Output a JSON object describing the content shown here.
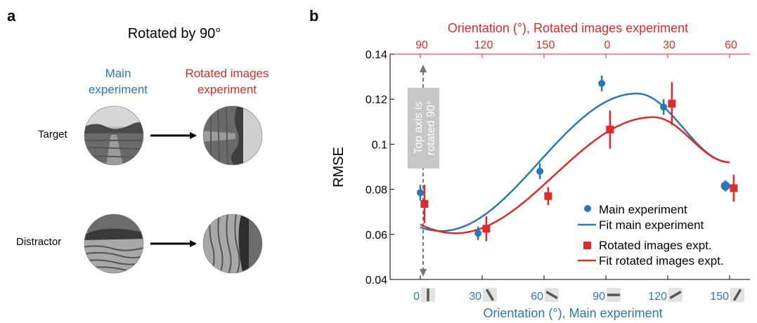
{
  "panel_a": {
    "letter": "a",
    "title": "Rotated by 90°",
    "col_main": [
      "Main",
      "experiment"
    ],
    "col_rot": [
      "Rotated images",
      "experiment"
    ],
    "row_target": "Target",
    "row_distractor": "Distractor"
  },
  "panel_b": {
    "letter": "b",
    "annotation": [
      "Top axis is",
      "rotated 90°"
    ]
  },
  "colors": {
    "main": "#2a77b8",
    "rotated": "#dd2a2a",
    "annotation": "#777777"
  },
  "chart_data": {
    "type": "scatter",
    "ylabel": "RMSE",
    "xlabel_bottom": "Orientation (°), Main experiment",
    "xlabel_top": "Orientation (°), Rotated images experiment",
    "ylim": [
      0.04,
      0.14
    ],
    "yticks": [
      0.04,
      0.06,
      0.08,
      0.1,
      0.12,
      0.14
    ],
    "ytick_labels": [
      "0.04",
      "0.06",
      "0.08",
      "0.1",
      "0.12",
      "0.14"
    ],
    "xlim": [
      -3,
      153
    ],
    "xticks_bottom": [
      0,
      30,
      60,
      90,
      120,
      150
    ],
    "xtick_labels_bottom": [
      "0",
      "30",
      "60",
      "90",
      "120",
      "150"
    ],
    "xtick_labels_top": [
      "90",
      "120",
      "150",
      "0",
      "30",
      "60"
    ],
    "legend_position": "bottom-right",
    "series": [
      {
        "name": "Main experiment",
        "marker": "circle",
        "x": [
          0,
          28,
          58,
          88,
          118,
          148
        ],
        "y": [
          0.0785,
          0.0605,
          0.088,
          0.127,
          0.1165,
          0.0815
        ],
        "err": [
          0.0035,
          0.003,
          0.0035,
          0.0035,
          0.0035,
          0.0025
        ]
      },
      {
        "name": "Rotated images expt.",
        "marker": "square",
        "x": [
          2,
          32,
          62,
          92,
          122,
          152
        ],
        "y": [
          0.0735,
          0.0625,
          0.077,
          0.1065,
          0.118,
          0.0805
        ],
        "err": [
          0.0085,
          0.0055,
          0.004,
          0.0085,
          0.0095,
          0.006
        ]
      }
    ],
    "fits": [
      {
        "name": "Fit main experiment",
        "x_range": [
          0,
          150
        ],
        "x_min": 10,
        "y_min": 0.0615,
        "x_max": 105,
        "y_max": 0.1225,
        "y_end": 0.092
      },
      {
        "name": "Fit rotated images expt.",
        "x_range": [
          0,
          150
        ],
        "x_min": 17,
        "y_min": 0.0605,
        "x_max": 113,
        "y_max": 0.112,
        "y_end": 0.092
      }
    ],
    "orientation_icons": [
      0,
      30,
      60,
      90,
      120,
      150
    ]
  }
}
